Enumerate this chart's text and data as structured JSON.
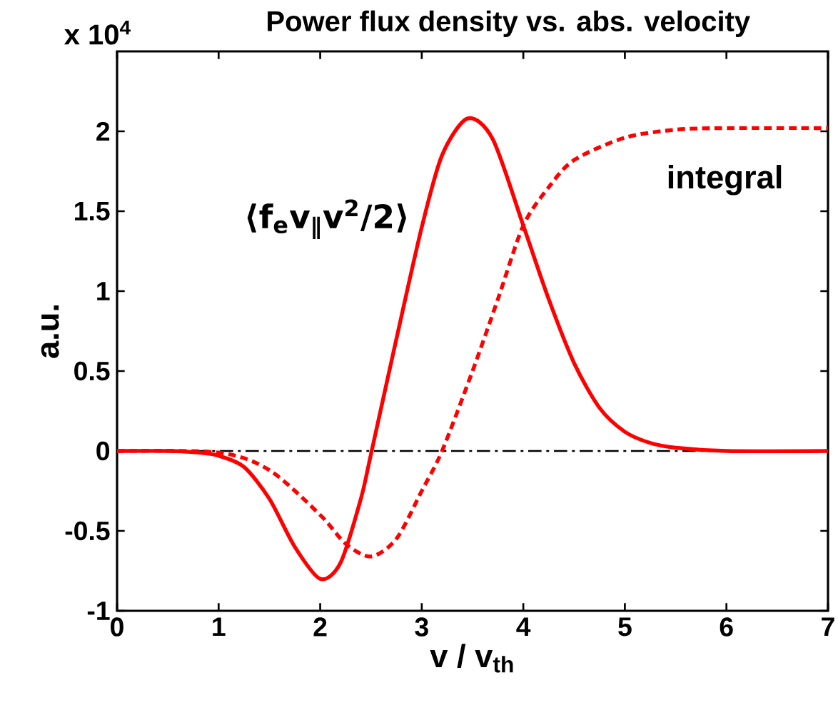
{
  "chart_data": {
    "type": "line",
    "title": "Power flux density vs. abs. velocity",
    "xlabel": "v / v$_{th}$",
    "ylabel": "a.u.",
    "x": [
      0,
      0.5,
      0.8,
      1,
      1.25,
      1.5,
      1.75,
      2,
      2.2,
      2.4,
      2.5,
      2.75,
      3,
      3.2,
      3.45,
      3.7,
      4,
      4.25,
      4.5,
      4.75,
      5,
      5.25,
      5.5,
      6,
      7
    ],
    "series": [
      {
        "color": "#ff0000",
        "line_style": "solid",
        "values": [
          0,
          0,
          -0.01,
          -0.03,
          -0.1,
          -0.3,
          -0.6,
          -0.8,
          -0.7,
          -0.3,
          -0.02,
          0.7,
          1.4,
          1.85,
          2.08,
          1.95,
          1.41,
          0.95,
          0.55,
          0.27,
          0.12,
          0.05,
          0.02,
          0,
          0
        ]
      },
      {
        "color": "#ff0000",
        "line_style": "dashed",
        "x": [
          0,
          1,
          1.5,
          2,
          2.25,
          2.5,
          2.75,
          3,
          3.2,
          3.5,
          3.75,
          4,
          4.25,
          4.5,
          5,
          5.5,
          6,
          7
        ],
        "values": [
          0,
          -0.01,
          -0.12,
          -0.4,
          -0.58,
          -0.66,
          -0.55,
          -0.25,
          0,
          0.5,
          0.95,
          1.41,
          1.65,
          1.82,
          1.96,
          2.01,
          2.02,
          2.02
        ]
      }
    ],
    "xlim": [
      0,
      7
    ],
    "ylim": [
      -1,
      2.5
    ],
    "xticks": [
      0,
      1,
      2,
      3,
      4,
      5,
      6,
      7
    ],
    "yticks": [
      -1,
      -0.5,
      0,
      0.5,
      1,
      1.5,
      2
    ],
    "ref_lines": [
      {
        "axis": "y",
        "value": 0,
        "color": "#000000",
        "line_style": "dashdot"
      }
    ],
    "annotations": [
      "x 10$^{4}$",
      "⟨f$_{e}$v$_{∥}$v$^{2}$/2⟩",
      "integral"
    ],
    "grid": false
  }
}
